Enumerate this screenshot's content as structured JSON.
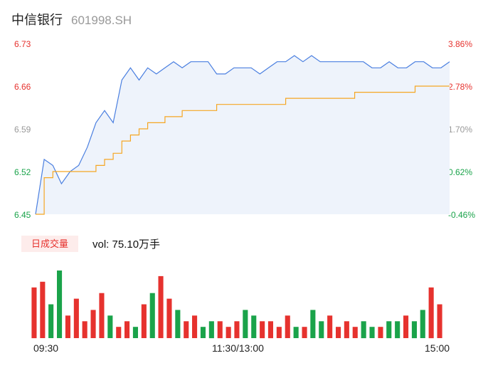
{
  "header": {
    "name": "中信银行",
    "code": "601998.SH"
  },
  "volume": {
    "badge": "日成交量",
    "text": "vol: 75.10万手"
  },
  "colors": {
    "price": "#4a7fe0",
    "avg": "#f5a623",
    "up": "#e6322e",
    "down": "#1aa34a",
    "neutral": "#999999",
    "fill": "#eef3fb"
  },
  "chart_data": {
    "type": "line",
    "title": "",
    "prev_close": 6.48,
    "ylim": [
      6.45,
      6.73
    ],
    "y_ticks_left": [
      "6.73",
      "6.66",
      "6.59",
      "6.52",
      "6.45"
    ],
    "y_ticks_right": [
      "3.86%",
      "2.78%",
      "1.70%",
      "0.62%",
      "-0.46%"
    ],
    "x_ticks": [
      "09:30",
      "11:30/13:00",
      "15:00"
    ],
    "series": [
      {
        "x": [
          "09:30",
          "09:35",
          "09:40",
          "09:45",
          "09:50",
          "09:55",
          "10:00",
          "10:05",
          "10:10",
          "10:15",
          "10:20",
          "10:25",
          "10:30",
          "10:35",
          "10:40",
          "10:45",
          "10:50",
          "10:55",
          "11:00",
          "11:05",
          "11:10",
          "11:15",
          "11:20",
          "11:25",
          "11:30",
          "13:05",
          "13:10",
          "13:15",
          "13:20",
          "13:25",
          "13:30",
          "13:35",
          "13:40",
          "13:45",
          "13:50",
          "13:55",
          "14:00",
          "14:05",
          "14:10",
          "14:15",
          "14:20",
          "14:25",
          "14:30",
          "14:35",
          "14:40",
          "14:45",
          "14:50",
          "14:55",
          "15:00"
        ],
        "values": [
          6.45,
          6.54,
          6.53,
          6.5,
          6.52,
          6.53,
          6.56,
          6.6,
          6.62,
          6.6,
          6.67,
          6.69,
          6.67,
          6.69,
          6.68,
          6.69,
          6.7,
          6.69,
          6.7,
          6.7,
          6.7,
          6.68,
          6.68,
          6.69,
          6.69,
          6.69,
          6.68,
          6.69,
          6.7,
          6.7,
          6.71,
          6.7,
          6.71,
          6.7,
          6.7,
          6.7,
          6.7,
          6.7,
          6.7,
          6.69,
          6.69,
          6.7,
          6.69,
          6.69,
          6.7,
          6.7,
          6.69,
          6.69,
          6.7
        ]
      },
      {
        "x": [
          "09:30",
          "09:35",
          "09:40",
          "09:45",
          "09:50",
          "09:55",
          "10:00",
          "10:05",
          "10:10",
          "10:15",
          "10:20",
          "10:25",
          "10:30",
          "10:35",
          "10:40",
          "10:45",
          "10:50",
          "10:55",
          "11:00",
          "11:05",
          "11:10",
          "11:15",
          "11:20",
          "11:25",
          "11:30",
          "13:05",
          "13:10",
          "13:15",
          "13:20",
          "13:25",
          "13:30",
          "13:35",
          "13:40",
          "13:45",
          "13:50",
          "13:55",
          "14:00",
          "14:05",
          "14:10",
          "14:15",
          "14:20",
          "14:25",
          "14:30",
          "14:35",
          "14:40",
          "14:45",
          "14:50",
          "14:55",
          "15:00"
        ],
        "values": [
          6.45,
          6.51,
          6.52,
          6.52,
          6.52,
          6.52,
          6.52,
          6.53,
          6.54,
          6.55,
          6.57,
          6.58,
          6.59,
          6.6,
          6.6,
          6.61,
          6.61,
          6.62,
          6.62,
          6.62,
          6.62,
          6.63,
          6.63,
          6.63,
          6.63,
          6.63,
          6.63,
          6.63,
          6.63,
          6.64,
          6.64,
          6.64,
          6.64,
          6.64,
          6.64,
          6.64,
          6.64,
          6.65,
          6.65,
          6.65,
          6.65,
          6.65,
          6.65,
          6.65,
          6.66,
          6.66,
          6.66,
          6.66,
          6.66
        ]
      }
    ],
    "volume_series": {
      "name": "vol",
      "values": [
        9,
        10,
        6,
        12,
        4,
        7,
        3,
        5,
        8,
        4,
        2,
        3,
        2,
        6,
        8,
        11,
        7,
        5,
        3,
        4,
        2,
        3,
        3,
        2,
        3,
        5,
        4,
        3,
        3,
        2,
        4,
        2,
        2,
        5,
        3,
        4,
        2,
        3,
        2,
        3,
        2,
        2,
        3,
        3,
        4,
        3,
        5,
        9,
        6
      ],
      "direction": [
        1,
        1,
        -1,
        -1,
        1,
        1,
        1,
        1,
        1,
        -1,
        1,
        1,
        -1,
        1,
        -1,
        1,
        1,
        -1,
        1,
        1,
        -1,
        -1,
        1,
        1,
        1,
        -1,
        -1,
        1,
        1,
        1,
        1,
        -1,
        1,
        -1,
        -1,
        1,
        1,
        1,
        1,
        -1,
        -1,
        1,
        -1,
        -1,
        1,
        -1,
        -1,
        1,
        1
      ]
    }
  }
}
